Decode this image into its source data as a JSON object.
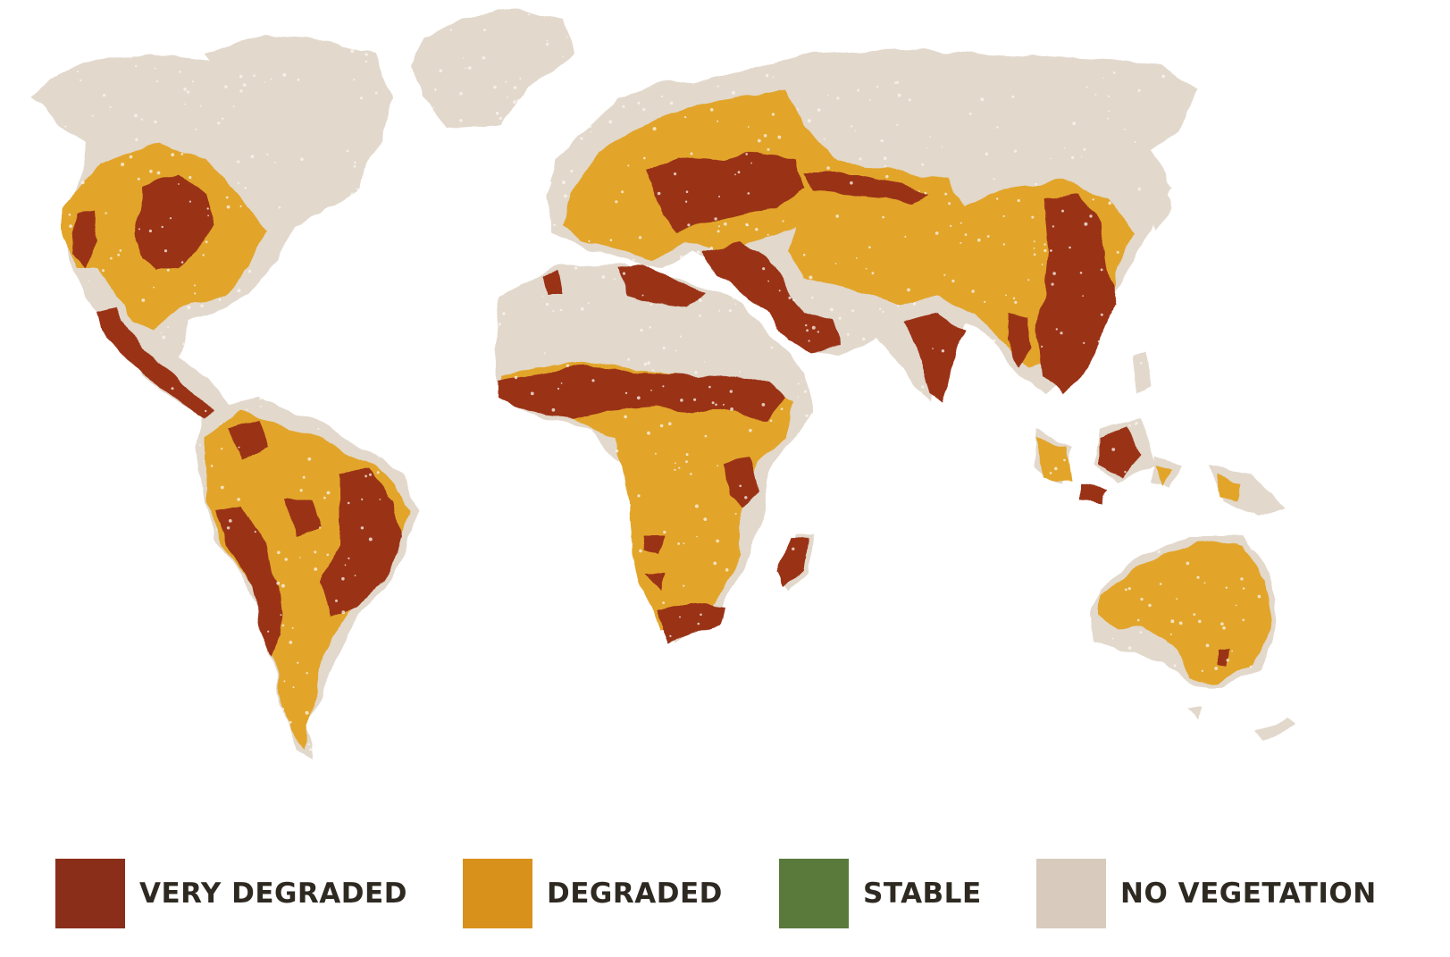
{
  "colors": {
    "background": "#ffffff",
    "land": "#e2d8cc",
    "speckle": "#fbf7f0",
    "legend_text": "#2e2a22"
  },
  "legend": {
    "items": [
      {
        "label": "VERY DEGRADED",
        "color": "#8a2e1a",
        "icon": "very-degraded-swatch"
      },
      {
        "label": "DEGRADED",
        "color": "#d8921c",
        "icon": "degraded-swatch"
      },
      {
        "label": "STABLE",
        "color": "#5a7a3c",
        "icon": "stable-swatch"
      },
      {
        "label": "NO VEGETATION",
        "color": "#d8cbbd",
        "icon": "no-vegetation-swatch"
      }
    ]
  },
  "map_layers": {
    "degraded_color": "#e2a52b",
    "very_degraded_color": "#9a3318"
  }
}
